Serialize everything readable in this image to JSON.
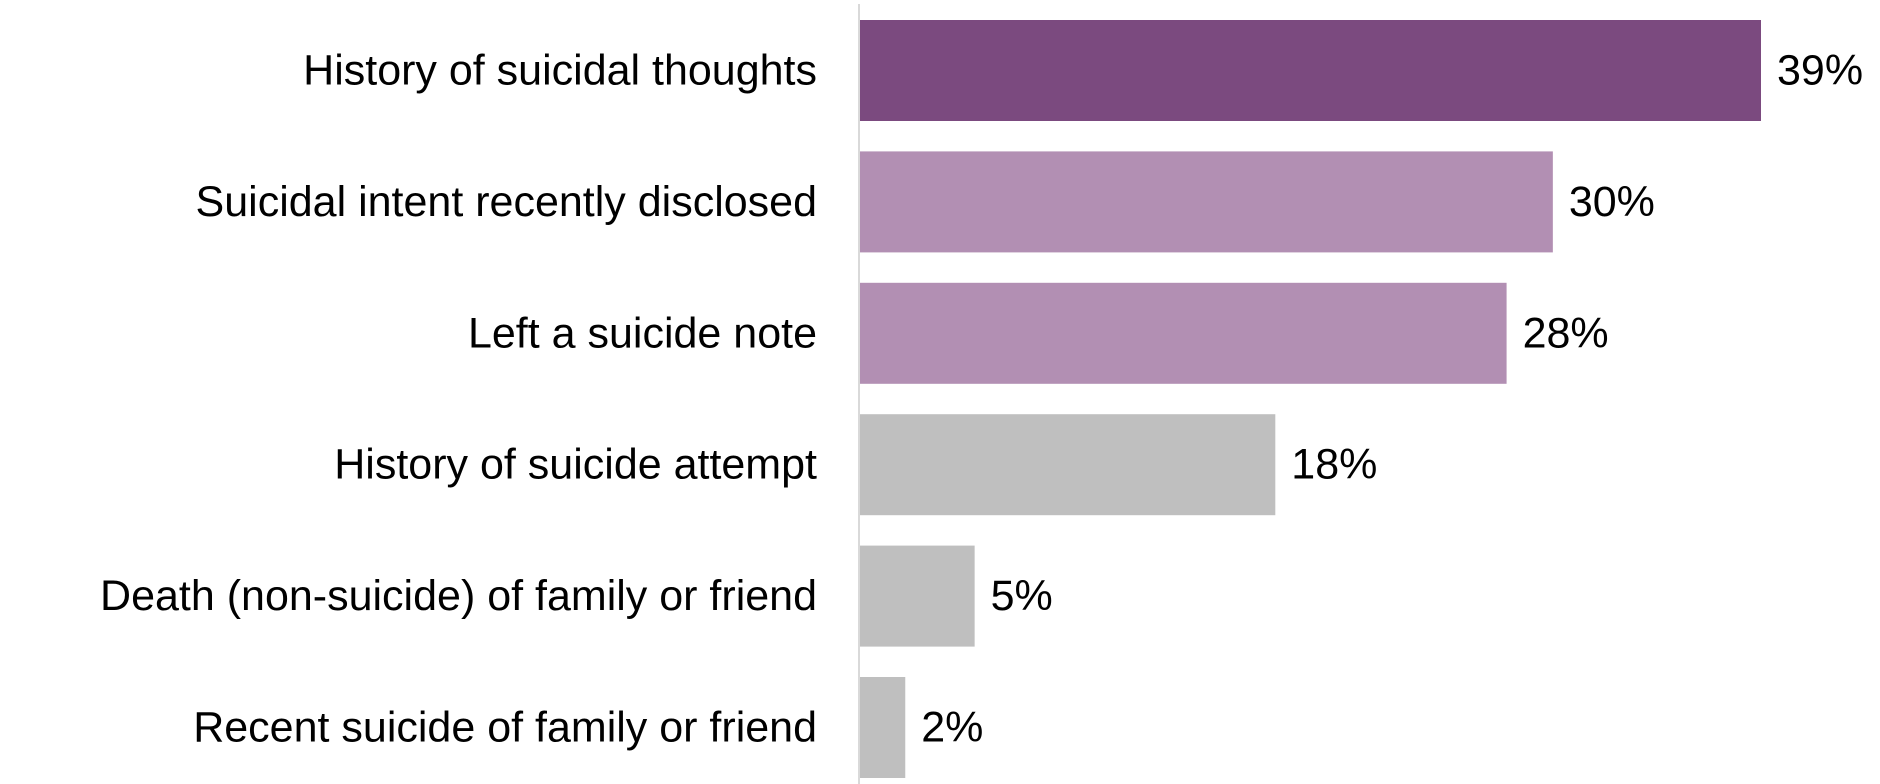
{
  "chart_data": {
    "type": "bar",
    "orientation": "horizontal",
    "categories": [
      "History of suicidal thoughts",
      "Suicidal intent recently disclosed",
      "Left a suicide note",
      "History of suicide attempt",
      "Death (non-suicide) of family or friend",
      "Recent suicide of family or friend"
    ],
    "values": [
      39,
      30,
      28,
      18,
      5,
      2
    ],
    "value_labels": [
      "39%",
      "30%",
      "28%",
      "18%",
      "5%",
      "2%"
    ],
    "unit": "%",
    "bar_colors": [
      "#7b4a7f",
      "#b28fb3",
      "#b28fb3",
      "#bfbfbf",
      "#bfbfbf",
      "#bfbfbf"
    ],
    "xlim": [
      0,
      39
    ],
    "grid": false,
    "legend": "none"
  }
}
